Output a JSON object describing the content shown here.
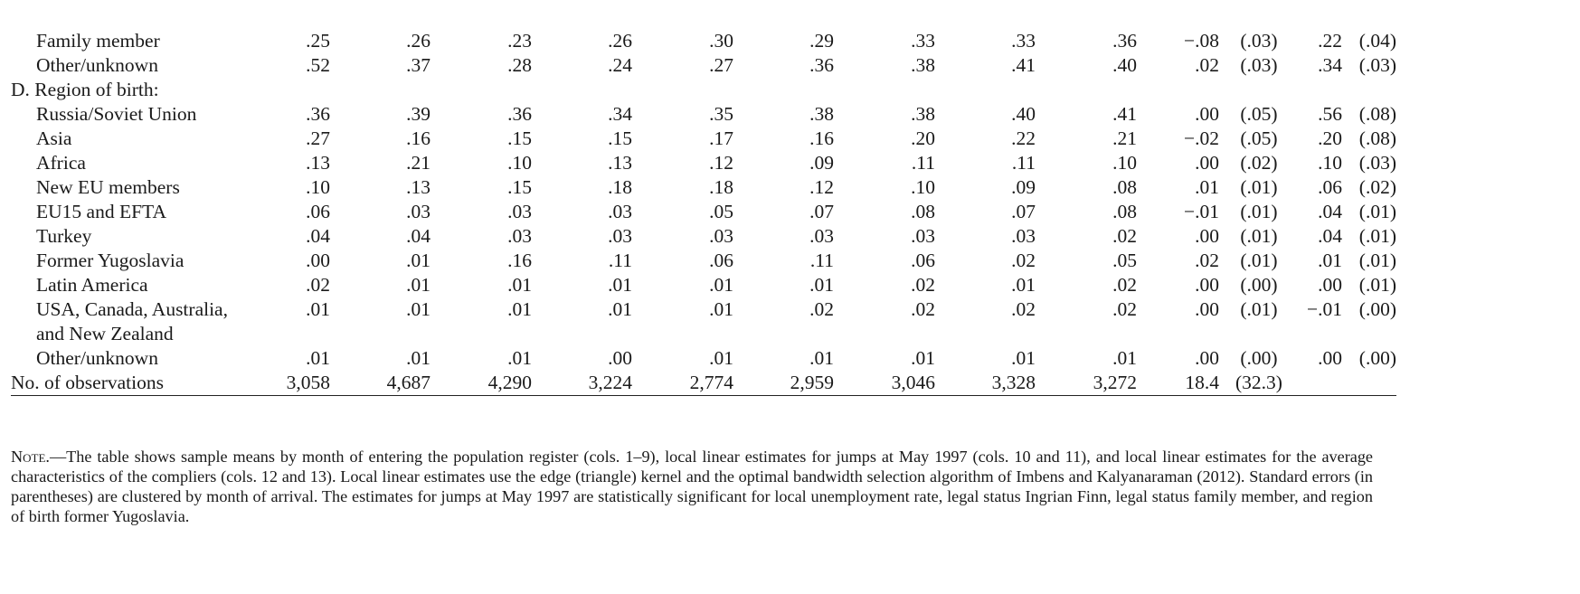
{
  "rows": [
    {
      "label": "Family member",
      "type": "row",
      "v": [
        ".25",
        ".26",
        ".23",
        ".26",
        ".30",
        ".29",
        ".33",
        ".33",
        ".36",
        "−.08",
        "(.03)",
        ".22",
        "(.04)"
      ]
    },
    {
      "label": "Other/unknown",
      "type": "row",
      "v": [
        ".52",
        ".37",
        ".28",
        ".24",
        ".27",
        ".36",
        ".38",
        ".41",
        ".40",
        ".02",
        "(.03)",
        ".34",
        "(.03)"
      ]
    },
    {
      "label": "D. Region of birth:",
      "type": "section"
    },
    {
      "label": "Russia/Soviet Union",
      "type": "row",
      "v": [
        ".36",
        ".39",
        ".36",
        ".34",
        ".35",
        ".38",
        ".38",
        ".40",
        ".41",
        ".00",
        "(.05)",
        ".56",
        "(.08)"
      ]
    },
    {
      "label": "Asia",
      "type": "row",
      "v": [
        ".27",
        ".16",
        ".15",
        ".15",
        ".17",
        ".16",
        ".20",
        ".22",
        ".21",
        "−.02",
        "(.05)",
        ".20",
        "(.08)"
      ]
    },
    {
      "label": "Africa",
      "type": "row",
      "v": [
        ".13",
        ".21",
        ".10",
        ".13",
        ".12",
        ".09",
        ".11",
        ".11",
        ".10",
        ".00",
        "(.02)",
        ".10",
        "(.03)"
      ]
    },
    {
      "label": "New EU members",
      "type": "row",
      "v": [
        ".10",
        ".13",
        ".15",
        ".18",
        ".18",
        ".12",
        ".10",
        ".09",
        ".08",
        ".01",
        "(.01)",
        ".06",
        "(.02)"
      ]
    },
    {
      "label": "EU15 and EFTA",
      "type": "row",
      "v": [
        ".06",
        ".03",
        ".03",
        ".03",
        ".05",
        ".07",
        ".08",
        ".07",
        ".08",
        "−.01",
        "(.01)",
        ".04",
        "(.01)"
      ]
    },
    {
      "label": "Turkey",
      "type": "row",
      "v": [
        ".04",
        ".04",
        ".03",
        ".03",
        ".03",
        ".03",
        ".03",
        ".03",
        ".02",
        ".00",
        "(.01)",
        ".04",
        "(.01)"
      ]
    },
    {
      "label": "Former Yugoslavia",
      "type": "row",
      "v": [
        ".00",
        ".01",
        ".16",
        ".11",
        ".06",
        ".11",
        ".06",
        ".02",
        ".05",
        ".02",
        "(.01)",
        ".01",
        "(.01)"
      ]
    },
    {
      "label": "Latin America",
      "type": "row",
      "v": [
        ".02",
        ".01",
        ".01",
        ".01",
        ".01",
        ".01",
        ".02",
        ".01",
        ".02",
        ".00",
        "(.00)",
        ".00",
        "(.01)"
      ]
    },
    {
      "label": "USA, Canada, Australia, and New Zealand",
      "type": "wrap",
      "v": [
        ".01",
        ".01",
        ".01",
        ".01",
        ".01",
        ".02",
        ".02",
        ".02",
        ".02",
        ".00",
        "(.01)",
        "−.01",
        "(.00)"
      ]
    },
    {
      "label": "Other/unknown",
      "type": "row",
      "v": [
        ".01",
        ".01",
        ".01",
        ".00",
        ".01",
        ".01",
        ".01",
        ".01",
        ".01",
        ".00",
        "(.00)",
        ".00",
        "(.00)"
      ]
    },
    {
      "label": "No. of observations",
      "type": "obs",
      "v": [
        "3,058",
        "4,687",
        "4,290",
        "3,224",
        "2,774",
        "2,959",
        "3,046",
        "3,328",
        "3,272",
        "18.4",
        "(32.3)",
        "",
        ""
      ]
    }
  ],
  "note": {
    "lead": "Note.",
    "text": "—The table shows sample means by month of entering the population register (cols. 1–9), local linear estimates for jumps at May 1997 (cols. 10 and 11), and local linear estimates for the average characteristics of the compliers (cols. 12 and 13). Local linear estimates use the edge (triangle) kernel and the optimal bandwidth selection algorithm of Imbens and Kalyanaraman (2012). Standard errors (in parentheses) are clustered by month of arrival. The estimates for jumps at May 1997 are statistically significant for local unemployment rate, legal status Ingrian Finn, legal status family member, and region of birth former Yugoslavia."
  }
}
